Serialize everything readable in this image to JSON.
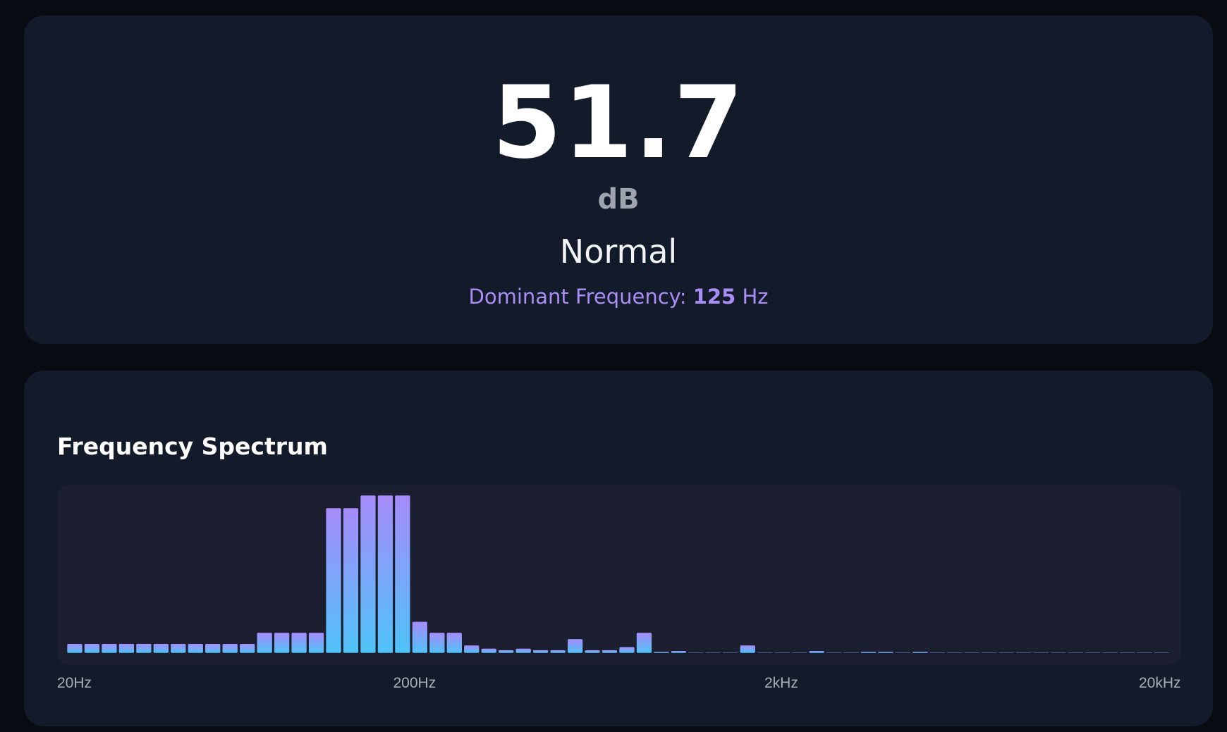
{
  "meter": {
    "level_value": "51.7",
    "level_unit": "dB",
    "status": "Normal",
    "dominant_label": "Dominant Frequency:",
    "dominant_value": "125",
    "dominant_unit": "Hz"
  },
  "spectrum": {
    "title": "Frequency Spectrum"
  },
  "colors": {
    "bar_top": "#a78bfa",
    "bar_bottom": "#4fc3f7",
    "card_bg": "#131a2a",
    "page_bg": "#080b12",
    "accent": "#a88ef5"
  },
  "chart_data": {
    "type": "bar",
    "title": "Frequency Spectrum",
    "xlabel": "",
    "ylabel": "",
    "x_scale": "log",
    "x_range_hz": [
      20,
      20000
    ],
    "x_ticks": [
      "20Hz",
      "200Hz",
      "2kHz",
      "20kHz"
    ],
    "ylim": [
      0,
      100
    ],
    "grid": false,
    "values": [
      6,
      6,
      6,
      6,
      6,
      6,
      6,
      6,
      6,
      6,
      6,
      13,
      13,
      13,
      13,
      92,
      92,
      100,
      100,
      100,
      20,
      13,
      13,
      5,
      3,
      2,
      3,
      2,
      2,
      9,
      2,
      2,
      4,
      13,
      1,
      1.5,
      0.5,
      0.5,
      0.5,
      5,
      0.5,
      0.5,
      0.5,
      1.5,
      0.5,
      0.5,
      1,
      1,
      0.5,
      1,
      0.5,
      0.5,
      0.5,
      0.5,
      0.5,
      0.5,
      0.5,
      0.5,
      0.5,
      0.5,
      0.5,
      0.5,
      0.5,
      0.5
    ]
  }
}
